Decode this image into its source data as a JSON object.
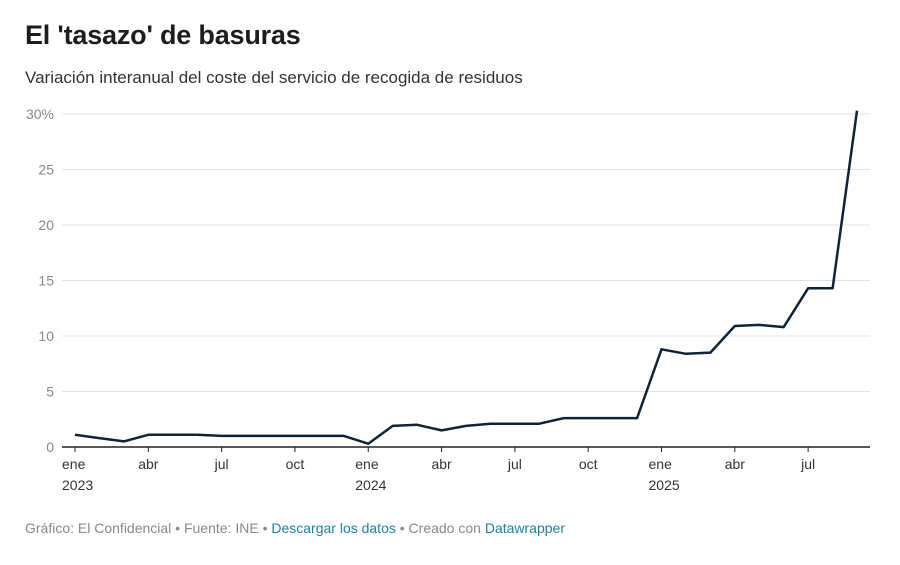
{
  "header": {
    "title": "El 'tasazo' de basuras",
    "subtitle": "Variación interanual del coste del servicio de recogida de residuos"
  },
  "footer": {
    "prefix": "Gráfico: El Confidencial • Fuente: INE • ",
    "download_link": "Descargar los datos",
    "middle": " • Creado con ",
    "tool_link": "Datawrapper"
  },
  "colors": {
    "line": "#0f2436",
    "grid": "#e3e3e3",
    "axis": "#222222",
    "link": "#1d81a2"
  },
  "chart_data": {
    "type": "line",
    "title": "El 'tasazo' de basuras",
    "subtitle": "Variación interanual del coste del servicio de recogida de residuos",
    "xlabel": "",
    "ylabel": "",
    "ylim": [
      0,
      30
    ],
    "grid": true,
    "y_ticks": [
      {
        "value": 30,
        "label": "30%"
      },
      {
        "value": 25,
        "label": "25"
      },
      {
        "value": 20,
        "label": "20"
      },
      {
        "value": 15,
        "label": "15"
      },
      {
        "value": 10,
        "label": "10"
      },
      {
        "value": 5,
        "label": "5"
      },
      {
        "value": 0,
        "label": "0"
      }
    ],
    "x_ticks": [
      {
        "x": "2023-01",
        "label": "ene",
        "year": "2023"
      },
      {
        "x": "2023-04",
        "label": "abr",
        "year": ""
      },
      {
        "x": "2023-07",
        "label": "jul",
        "year": ""
      },
      {
        "x": "2023-10",
        "label": "oct",
        "year": ""
      },
      {
        "x": "2024-01",
        "label": "ene",
        "year": "2024"
      },
      {
        "x": "2024-04",
        "label": "abr",
        "year": ""
      },
      {
        "x": "2024-07",
        "label": "jul",
        "year": ""
      },
      {
        "x": "2024-10",
        "label": "oct",
        "year": ""
      },
      {
        "x": "2025-01",
        "label": "ene",
        "year": "2025"
      },
      {
        "x": "2025-04",
        "label": "abr",
        "year": ""
      },
      {
        "x": "2025-07",
        "label": "jul",
        "year": ""
      }
    ],
    "series": [
      {
        "x": [
          "2023-01",
          "2023-02",
          "2023-03",
          "2023-04",
          "2023-05",
          "2023-06",
          "2023-07",
          "2023-08",
          "2023-09",
          "2023-10",
          "2023-11",
          "2023-12",
          "2024-01",
          "2024-02",
          "2024-03",
          "2024-04",
          "2024-05",
          "2024-06",
          "2024-07",
          "2024-08",
          "2024-09",
          "2024-10",
          "2024-11",
          "2024-12",
          "2025-01",
          "2025-02",
          "2025-03",
          "2025-04",
          "2025-05",
          "2025-06",
          "2025-07",
          "2025-08",
          "2025-09"
        ],
        "values": [
          1.1,
          0.8,
          0.5,
          1.1,
          1.1,
          1.1,
          1.0,
          1.0,
          1.0,
          1.0,
          1.0,
          1.0,
          0.3,
          1.9,
          2.0,
          1.5,
          1.9,
          2.1,
          2.1,
          2.1,
          2.6,
          2.6,
          2.6,
          2.6,
          8.8,
          8.4,
          8.5,
          10.9,
          11.0,
          10.8,
          14.3,
          14.3,
          30.3
        ]
      }
    ]
  }
}
